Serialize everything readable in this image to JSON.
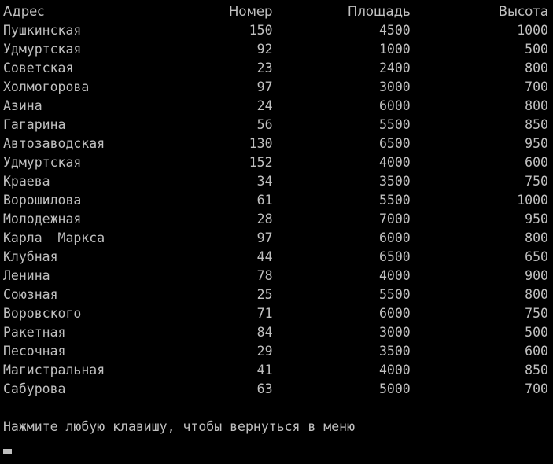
{
  "table": {
    "headers": {
      "address": "Адрес",
      "number": "Номер",
      "area": "Площадь",
      "height": "Высота"
    },
    "rows": [
      {
        "address": "Пушкинская",
        "number": "150",
        "area": "4500",
        "height": "1000"
      },
      {
        "address": "Удмуртская",
        "number": "92",
        "area": "1000",
        "height": "500"
      },
      {
        "address": "Советская",
        "number": "23",
        "area": "2400",
        "height": "800"
      },
      {
        "address": "Холмогорова",
        "number": "97",
        "area": "3000",
        "height": "700"
      },
      {
        "address": "Азина",
        "number": "24",
        "area": "6000",
        "height": "800"
      },
      {
        "address": "Гагарина",
        "number": "56",
        "area": "5500",
        "height": "850"
      },
      {
        "address": "Автозаводская",
        "number": "130",
        "area": "6500",
        "height": "950"
      },
      {
        "address": "Удмуртская",
        "number": "152",
        "area": "4000",
        "height": "600"
      },
      {
        "address": "Краева",
        "number": "34",
        "area": "3500",
        "height": "750"
      },
      {
        "address": "Ворошилова",
        "number": "61",
        "area": "5500",
        "height": "1000"
      },
      {
        "address": "Молодежная",
        "number": "28",
        "area": "7000",
        "height": "950"
      },
      {
        "address": "Карла  Маркса",
        "number": "97",
        "area": "6000",
        "height": "800"
      },
      {
        "address": "Клубная",
        "number": "44",
        "area": "6500",
        "height": "650"
      },
      {
        "address": "Ленина",
        "number": "78",
        "area": "4000",
        "height": "900"
      },
      {
        "address": "Союзная",
        "number": "25",
        "area": "5500",
        "height": "800"
      },
      {
        "address": "Воровского",
        "number": "71",
        "area": "6000",
        "height": "750"
      },
      {
        "address": "Ракетная",
        "number": "84",
        "area": "3000",
        "height": "500"
      },
      {
        "address": "Песочная",
        "number": "29",
        "area": "3500",
        "height": "600"
      },
      {
        "address": "Магистральная",
        "number": "41",
        "area": "4000",
        "height": "850"
      },
      {
        "address": "Сабурова",
        "number": "63",
        "area": "5000",
        "height": "700"
      }
    ]
  },
  "prompt": "Нажмите любую клавишу, чтобы вернуться в меню",
  "colors": {
    "background": "#000000",
    "text": "#c0c0c0"
  }
}
